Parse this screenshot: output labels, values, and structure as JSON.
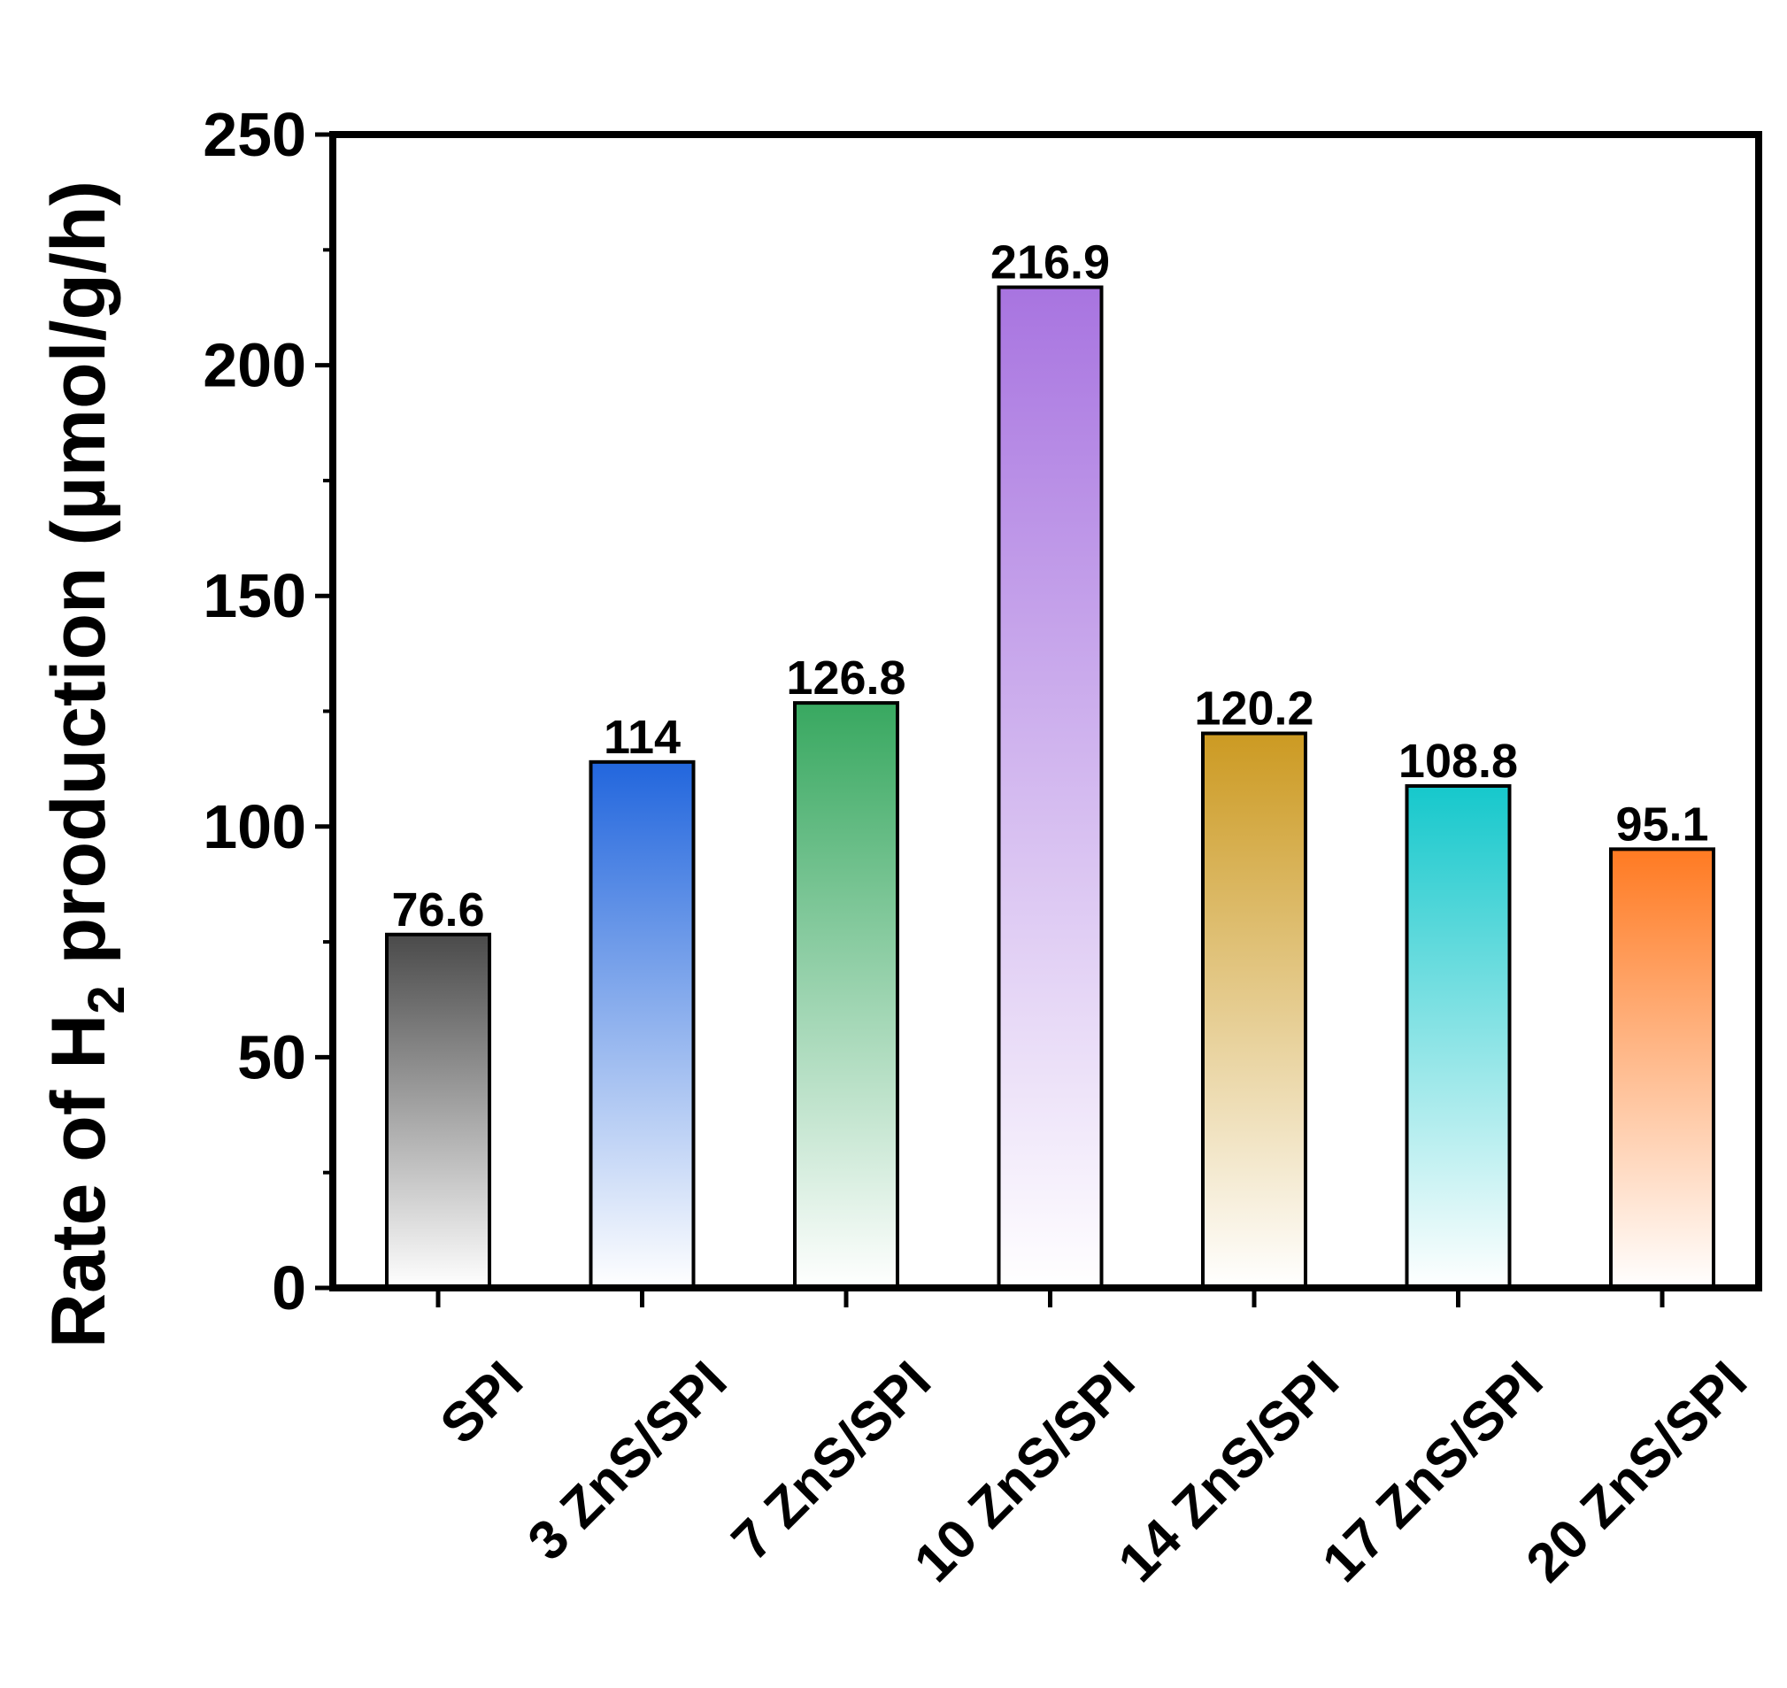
{
  "chart_data": {
    "type": "bar",
    "title": "",
    "ylabel_main": "Rate of H",
    "ylabel_sub": "2",
    "ylabel_rest": " production (µmol/g/h)",
    "xlabel": "",
    "ylim": [
      0,
      250
    ],
    "yticks": [
      "0",
      "50",
      "100",
      "150",
      "200",
      "250"
    ],
    "categories": [
      "SPI",
      "3 ZnS/SPI",
      "7 ZnS/SPI",
      "10 ZnS/SPI",
      "14 ZnS/SPI",
      "17 ZnS/SPI",
      "20 ZnS/SPI"
    ],
    "values": [
      76.6,
      114,
      126.8,
      216.9,
      120.2,
      108.8,
      95.1
    ],
    "value_labels": [
      "76.6",
      "114",
      "126.8",
      "216.9",
      "120.2",
      "108.8",
      "95.1"
    ],
    "bar_colors": [
      "#4a4a4a",
      "#2266dd",
      "#38a860",
      "#a874e0",
      "#cc9a22",
      "#16c8cc",
      "#ff7a22"
    ],
    "grid": false,
    "legend": "none"
  }
}
